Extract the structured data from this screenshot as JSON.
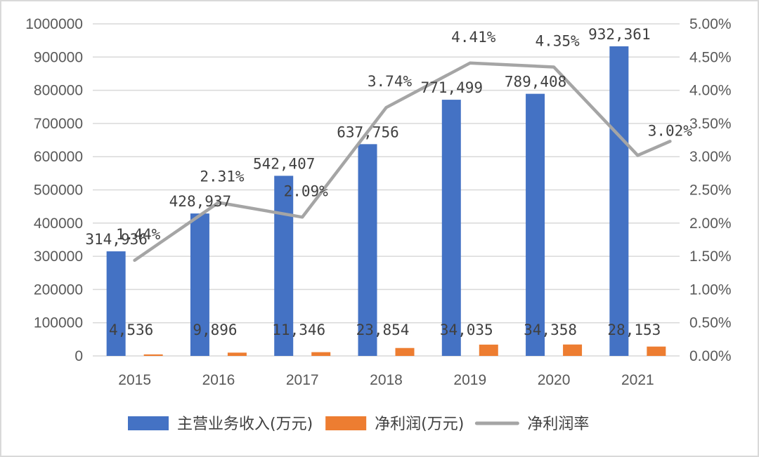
{
  "chart_data": {
    "type": "bar+line",
    "categories": [
      "2015",
      "2016",
      "2017",
      "2018",
      "2019",
      "2020",
      "2021"
    ],
    "series": [
      {
        "name": "主营业务收入(万元)",
        "type": "bar",
        "axis": "left",
        "color": "#4472C4",
        "values": [
          314936,
          428937,
          542407,
          637756,
          771499,
          789408,
          932361
        ],
        "labels": [
          "314,936",
          "428,937",
          "542,407",
          "637,756",
          "771,499",
          "789,408",
          "932,361"
        ]
      },
      {
        "name": "净利润(万元)",
        "type": "bar",
        "axis": "left",
        "color": "#ED7D31",
        "values": [
          4536,
          9896,
          11346,
          23854,
          34035,
          34358,
          28153
        ],
        "labels": [
          "4,536",
          "9,896",
          "11,346",
          "23,854",
          "34,035",
          "34,358",
          "28,153"
        ]
      },
      {
        "name": "净利润率",
        "type": "line",
        "axis": "right",
        "color": "#A5A5A5",
        "values": [
          1.44,
          2.31,
          2.09,
          3.74,
          4.41,
          4.35,
          3.02
        ],
        "labels": [
          "1.44%",
          "2.31%",
          "2.09%",
          "3.74%",
          "4.41%",
          "4.35%",
          "3.02%"
        ]
      }
    ],
    "y_left": {
      "ylim": [
        0,
        1000000
      ],
      "ticks": [
        "0",
        "100000",
        "200000",
        "300000",
        "400000",
        "500000",
        "600000",
        "700000",
        "800000",
        "900000",
        "1000000"
      ]
    },
    "y_right": {
      "ylim": [
        0,
        5
      ],
      "ticks": [
        "0.00%",
        "0.50%",
        "1.00%",
        "1.50%",
        "2.00%",
        "2.50%",
        "3.00%",
        "3.50%",
        "4.00%",
        "4.50%",
        "5.00%"
      ]
    },
    "grid": true,
    "legend_position": "bottom"
  }
}
